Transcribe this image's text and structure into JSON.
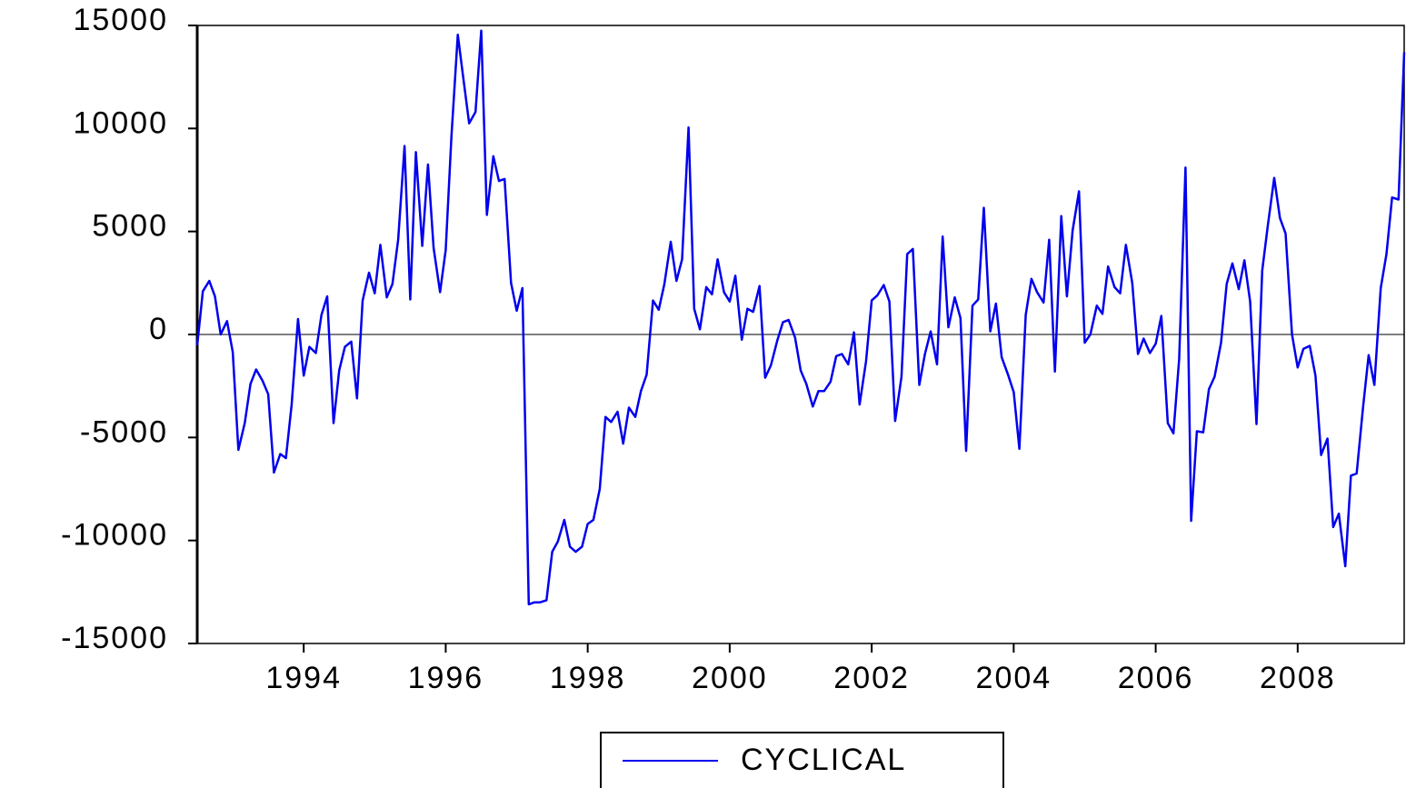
{
  "chart_data": {
    "type": "line",
    "x": [
      1993.0,
      1993.08,
      1993.17,
      1993.25,
      1993.33,
      1993.42,
      1993.5,
      1993.58,
      1993.67,
      1993.75,
      1993.83,
      1993.92,
      1994.0,
      1994.08,
      1994.17,
      1994.25,
      1994.33,
      1994.42,
      1994.5,
      1994.58,
      1994.67,
      1994.75,
      1994.83,
      1994.92,
      1995.0,
      1995.08,
      1995.17,
      1995.25,
      1995.33,
      1995.42,
      1995.5,
      1995.58,
      1995.67,
      1995.75,
      1995.83,
      1995.92,
      1996.0,
      1996.08,
      1996.17,
      1996.25,
      1996.33,
      1996.42,
      1996.5,
      1996.58,
      1996.67,
      1996.75,
      1996.83,
      1996.92,
      1997.0,
      1997.08,
      1997.17,
      1997.25,
      1997.33,
      1997.42,
      1997.5,
      1997.58,
      1997.67,
      1997.75,
      1997.83,
      1997.92,
      1998.0,
      1998.08,
      1998.17,
      1998.25,
      1998.33,
      1998.42,
      1998.5,
      1998.58,
      1998.67,
      1998.75,
      1998.83,
      1998.92,
      1999.0,
      1999.08,
      1999.17,
      1999.25,
      1999.33,
      1999.42,
      1999.5,
      1999.58,
      1999.67,
      1999.75,
      1999.83,
      1999.92,
      2000.0,
      2000.08,
      2000.17,
      2000.25,
      2000.33,
      2000.42,
      2000.5,
      2000.58,
      2000.67,
      2000.75,
      2000.83,
      2000.92,
      2001.0,
      2001.08,
      2001.17,
      2001.25,
      2001.33,
      2001.42,
      2001.5,
      2001.58,
      2001.67,
      2001.75,
      2001.83,
      2001.92,
      2002.0,
      2002.08,
      2002.17,
      2002.25,
      2002.33,
      2002.42,
      2002.5,
      2002.58,
      2002.67,
      2002.75,
      2002.83,
      2002.92,
      2003.0,
      2003.08,
      2003.17,
      2003.25,
      2003.33,
      2003.42,
      2003.5,
      2003.58,
      2003.67,
      2003.75,
      2003.83,
      2003.92,
      2004.0,
      2004.08,
      2004.17,
      2004.25,
      2004.33,
      2004.42,
      2004.5,
      2004.58,
      2004.67,
      2004.75,
      2004.83,
      2004.92,
      2005.0,
      2005.08,
      2005.17,
      2005.25,
      2005.33,
      2005.42,
      2005.5,
      2005.58,
      2005.67,
      2005.75,
      2005.83,
      2005.92,
      2006.0,
      2006.08,
      2006.17,
      2006.25,
      2006.33,
      2006.42,
      2006.5,
      2006.58,
      2006.67,
      2006.75,
      2006.83,
      2006.92,
      2007.0,
      2007.08,
      2007.17,
      2007.25,
      2007.33,
      2007.42,
      2007.5,
      2007.58,
      2007.67,
      2007.75,
      2007.83,
      2007.92,
      2008.0,
      2008.08,
      2008.17,
      2008.25,
      2008.33,
      2008.42,
      2008.5,
      2008.58,
      2008.67,
      2008.75,
      2008.83,
      2008.92,
      2009.0,
      2009.08,
      2009.17,
      2009.25,
      2009.33,
      2009.42,
      2009.5,
      2009.58,
      2009.67,
      2009.75,
      2009.83,
      2009.92,
      2010.0
    ],
    "series": [
      {
        "name": "CYCLICAL",
        "color": "#0000ee",
        "values": [
          -530,
          2100,
          2600,
          1850,
          0,
          650,
          -850,
          -5600,
          -4300,
          -2400,
          -1700,
          -2250,
          -2900,
          -6700,
          -5800,
          -6000,
          -3400,
          750,
          -2000,
          -600,
          -900,
          950,
          1850,
          -4300,
          -1750,
          -600,
          -350,
          -3100,
          1650,
          3000,
          2000,
          4350,
          1800,
          2450,
          4600,
          9150,
          1700,
          8850,
          4300,
          8250,
          4200,
          2050,
          4100,
          9600,
          14550,
          12400,
          10250,
          10800,
          14750,
          5800,
          8650,
          7450,
          7550,
          2500,
          1150,
          2250,
          -13100,
          -13000,
          -13000,
          -12900,
          -10550,
          -10050,
          -9000,
          -10300,
          -10550,
          -10300,
          -9200,
          -9000,
          -7500,
          -4000,
          -4250,
          -3750,
          -5300,
          -3550,
          -4000,
          -2750,
          -1950,
          1650,
          1200,
          2450,
          4500,
          2600,
          3650,
          10050,
          1250,
          250,
          2300,
          1950,
          3650,
          2050,
          1600,
          2850,
          -250,
          1250,
          1100,
          2350,
          -2100,
          -1500,
          -300,
          600,
          700,
          -150,
          -1750,
          -2400,
          -3500,
          -2750,
          -2750,
          -2300,
          -1050,
          -950,
          -1450,
          100,
          -3400,
          -1300,
          1650,
          1900,
          2400,
          1600,
          -4200,
          -2050,
          3900,
          4150,
          -2450,
          -950,
          150,
          -1450,
          4750,
          350,
          1800,
          800,
          -5650,
          1400,
          1700,
          6150,
          150,
          1500,
          -1100,
          -1950,
          -2800,
          -5550,
          950,
          2700,
          2050,
          1550,
          4600,
          -1800,
          5750,
          1850,
          5050,
          6950,
          -400,
          0,
          1400,
          1000,
          3300,
          2300,
          2000,
          4350,
          2500,
          -950,
          -200,
          -900,
          -450,
          900,
          -4300,
          -4800,
          -1200,
          8100,
          -9050,
          -4700,
          -4750,
          -2650,
          -2050,
          -400,
          2450,
          3450,
          2200,
          3600,
          1600,
          -4350,
          3100,
          5300,
          7600,
          5650,
          4900,
          0,
          -1600,
          -700,
          -550,
          -2000,
          -5850,
          -5050,
          -9350,
          -8700,
          -11250,
          -6850,
          -6750,
          -3550,
          -1000,
          -2450,
          2250,
          3900,
          6650,
          6550,
          13700
        ]
      }
    ],
    "xlim": [
      1993,
      2010
    ],
    "xticks": [
      {
        "value": 1994.5,
        "label": "1994"
      },
      {
        "value": 1996.5,
        "label": "1996"
      },
      {
        "value": 1998.5,
        "label": "1998"
      },
      {
        "value": 2000.5,
        "label": "2000"
      },
      {
        "value": 2002.5,
        "label": "2002"
      },
      {
        "value": 2004.5,
        "label": "2004"
      },
      {
        "value": 2006.5,
        "label": "2006"
      },
      {
        "value": 2008.5,
        "label": "2008"
      }
    ],
    "ylim": [
      -15000,
      15000
    ],
    "yticks": [
      15000,
      10000,
      5000,
      0,
      -5000,
      -10000,
      -15000
    ],
    "zero_line": true
  }
}
